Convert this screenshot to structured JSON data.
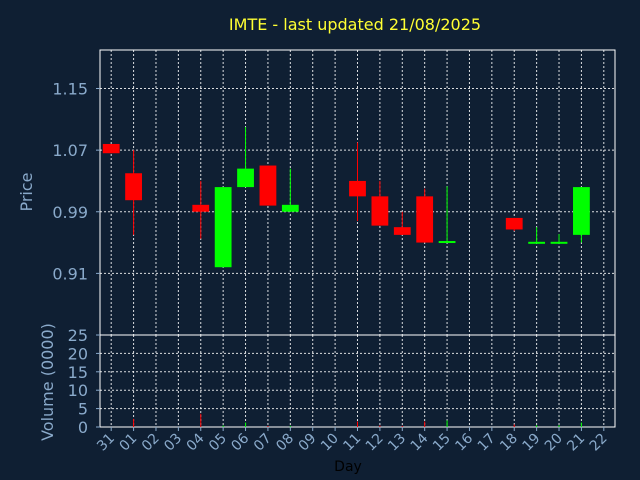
{
  "chart_data": {
    "type": "candlestick",
    "title": "IMTE - last updated 21/08/2025",
    "xlabel": "Day",
    "ylabel_price": "Price",
    "ylabel_volume": "Volume (0000)",
    "x_ticks": [
      "31",
      "01",
      "02",
      "03",
      "04",
      "05",
      "06",
      "07",
      "08",
      "09",
      "10",
      "11",
      "12",
      "13",
      "14",
      "15",
      "16",
      "17",
      "18",
      "19",
      "20",
      "21",
      "22"
    ],
    "price_ticks": [
      "1.15",
      "1.07",
      "0.99",
      "0.91"
    ],
    "volume_ticks": [
      "25",
      "20",
      "15",
      "10",
      "5",
      "0"
    ],
    "price_range": [
      0.83,
      1.2
    ],
    "volume_range": [
      0,
      25
    ],
    "grid": true,
    "colors": {
      "up": "#00ff00",
      "down": "#ff0000",
      "background": "#0f1f33",
      "grid": "#ffffff",
      "title": "#ffff33",
      "axis": "#8aaacb"
    },
    "candles": [
      {
        "day": "31",
        "open": 1.078,
        "high": 1.078,
        "low": 1.066,
        "close": 1.066
      },
      {
        "day": "01",
        "open": 1.04,
        "high": 1.07,
        "low": 0.96,
        "close": 1.005
      },
      {
        "day": "04",
        "open": 0.999,
        "high": 1.03,
        "low": 0.955,
        "close": 0.99
      },
      {
        "day": "05",
        "open": 0.918,
        "high": 1.022,
        "low": 0.918,
        "close": 1.022
      },
      {
        "day": "06",
        "open": 1.022,
        "high": 1.1,
        "low": 1.022,
        "close": 1.046
      },
      {
        "day": "07",
        "open": 1.05,
        "high": 1.05,
        "low": 0.998,
        "close": 0.998
      },
      {
        "day": "08",
        "open": 0.99,
        "high": 1.046,
        "low": 0.99,
        "close": 0.999
      },
      {
        "day": "11",
        "open": 1.03,
        "high": 1.08,
        "low": 0.978,
        "close": 1.01
      },
      {
        "day": "12",
        "open": 1.01,
        "high": 1.03,
        "low": 0.972,
        "close": 0.972
      },
      {
        "day": "13",
        "open": 0.97,
        "high": 0.99,
        "low": 0.96,
        "close": 0.96
      },
      {
        "day": "14",
        "open": 1.01,
        "high": 1.02,
        "low": 0.95,
        "close": 0.95
      },
      {
        "day": "15",
        "open": 0.95,
        "high": 1.023,
        "low": 0.95,
        "close": 0.952
      },
      {
        "day": "18",
        "open": 0.982,
        "high": 0.982,
        "low": 0.965,
        "close": 0.967
      },
      {
        "day": "19",
        "open": 0.95,
        "high": 0.97,
        "low": 0.95,
        "close": 0.951
      },
      {
        "day": "20",
        "open": 0.95,
        "high": 0.961,
        "low": 0.95,
        "close": 0.951
      },
      {
        "day": "21",
        "open": 0.96,
        "high": 1.022,
        "low": 0.95,
        "close": 1.022
      }
    ],
    "volumes": [
      {
        "day": "01",
        "value": 2.2,
        "dir": "down"
      },
      {
        "day": "04",
        "value": 3.6,
        "dir": "down"
      },
      {
        "day": "05",
        "value": 0.4,
        "dir": "up"
      },
      {
        "day": "06",
        "value": 1.2,
        "dir": "up"
      },
      {
        "day": "07",
        "value": 0.3,
        "dir": "down"
      },
      {
        "day": "08",
        "value": 0.3,
        "dir": "up"
      },
      {
        "day": "11",
        "value": 1.5,
        "dir": "down"
      },
      {
        "day": "12",
        "value": 0.4,
        "dir": "down"
      },
      {
        "day": "13",
        "value": 0.3,
        "dir": "down"
      },
      {
        "day": "14",
        "value": 1.5,
        "dir": "down"
      },
      {
        "day": "15",
        "value": 1.8,
        "dir": "up"
      },
      {
        "day": "18",
        "value": 0.7,
        "dir": "down"
      },
      {
        "day": "19",
        "value": 0.5,
        "dir": "up"
      },
      {
        "day": "20",
        "value": 0.5,
        "dir": "up"
      },
      {
        "day": "21",
        "value": 1.2,
        "dir": "up"
      }
    ]
  }
}
